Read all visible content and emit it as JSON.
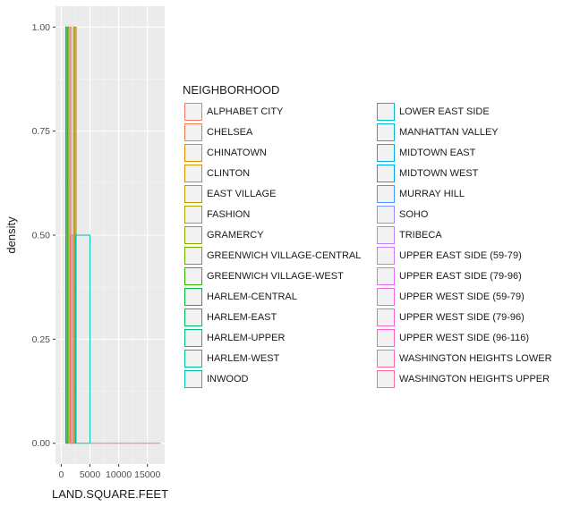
{
  "chart_data": {
    "type": "histogram",
    "xlabel": "LAND.SQUARE.FEET",
    "ylabel": "density",
    "xlim": [
      -1000,
      18000
    ],
    "ylim": [
      -0.05,
      1.05
    ],
    "x_ticks": [
      0,
      5000,
      10000,
      15000
    ],
    "x_tick_labels": [
      "0",
      "5000",
      "10000",
      "15000"
    ],
    "y_ticks": [
      0,
      0.25,
      0.5,
      0.75,
      1
    ],
    "y_tick_labels": [
      "0.00",
      "0.25",
      "0.50",
      "0.75",
      "1.00"
    ],
    "grid": true,
    "legend_placement": "right",
    "legend_title": "NEIGHBORHOOD",
    "series": [
      {
        "name": "ALPHABET CITY",
        "color": "#F8766D"
      },
      {
        "name": "CHELSEA",
        "color": "#EF7F48"
      },
      {
        "name": "CHINATOWN",
        "color": "#E38900"
      },
      {
        "name": "CLINTON",
        "color": "#D39200"
      },
      {
        "name": "EAST VILLAGE",
        "color": "#C09B00"
      },
      {
        "name": "FASHION",
        "color": "#A9A300"
      },
      {
        "name": "GRAMERCY",
        "color": "#8EAB00"
      },
      {
        "name": "GREENWICH VILLAGE-CENTRAL",
        "color": "#6BB100"
      },
      {
        "name": "GREENWICH VILLAGE-WEST",
        "color": "#2FB600"
      },
      {
        "name": "HARLEM-CENTRAL",
        "color": "#00BA38"
      },
      {
        "name": "HARLEM-EAST",
        "color": "#00BD5F"
      },
      {
        "name": "HARLEM-UPPER",
        "color": "#00BF7D"
      },
      {
        "name": "HARLEM-WEST",
        "color": "#00C097"
      },
      {
        "name": "INWOOD",
        "color": "#00C0AF"
      },
      {
        "name": "LOWER EAST SIDE",
        "color": "#00BDC4"
      },
      {
        "name": "MANHATTAN VALLEY",
        "color": "#00B8D7"
      },
      {
        "name": "MIDTOWN EAST",
        "color": "#00B0E7"
      },
      {
        "name": "MIDTOWN WEST",
        "color": "#00A5F4"
      },
      {
        "name": "MURRAY HILL",
        "color": "#3D9AFE"
      },
      {
        "name": "SOHO",
        "color": "#8F91FF"
      },
      {
        "name": "TRIBECA",
        "color": "#B385FF"
      },
      {
        "name": "UPPER EAST SIDE (59-79)",
        "color": "#CF78FF"
      },
      {
        "name": "UPPER EAST SIDE (79-96)",
        "color": "#E36EF6"
      },
      {
        "name": "UPPER WEST SIDE (59-79)",
        "color": "#F166E8"
      },
      {
        "name": "UPPER WEST SIDE (79-96)",
        "color": "#FB61D7"
      },
      {
        "name": "UPPER WEST SIDE (96-116)",
        "color": "#FF62C1"
      },
      {
        "name": "WASHINGTON HEIGHTS LOWER",
        "color": "#FF67A8"
      },
      {
        "name": "WASHINGTON HEIGHTS UPPER",
        "color": "#FF6C91"
      }
    ],
    "bars": [
      {
        "series": "ALPHABET CITY",
        "x0": 1500,
        "x1": 1700,
        "density": 1.0
      },
      {
        "series": "CHELSEA",
        "x0": 1600,
        "x1": 2000,
        "density": 0.5
      },
      {
        "series": "CLINTON",
        "x0": 2100,
        "x1": 2300,
        "density": 1.0
      },
      {
        "series": "FASHION",
        "x0": 2400,
        "x1": 2600,
        "density": 1.0
      },
      {
        "series": "GREENWICH VILLAGE-CENTRAL",
        "x0": 1100,
        "x1": 1300,
        "density": 1.0
      },
      {
        "series": "HARLEM-CENTRAL",
        "x0": 800,
        "x1": 1000,
        "density": 1.0
      },
      {
        "series": "INWOOD",
        "x0": 2500,
        "x1": 5000,
        "density": 0.5
      },
      {
        "series": "UPPER WEST SIDE (96-116)",
        "x0": 1700,
        "x1": 2000,
        "density": 0.5
      },
      {
        "series": "WASHINGTON HEIGHTS UPPER",
        "x0": 5000,
        "x1": 17200,
        "density": 0.0
      }
    ]
  }
}
